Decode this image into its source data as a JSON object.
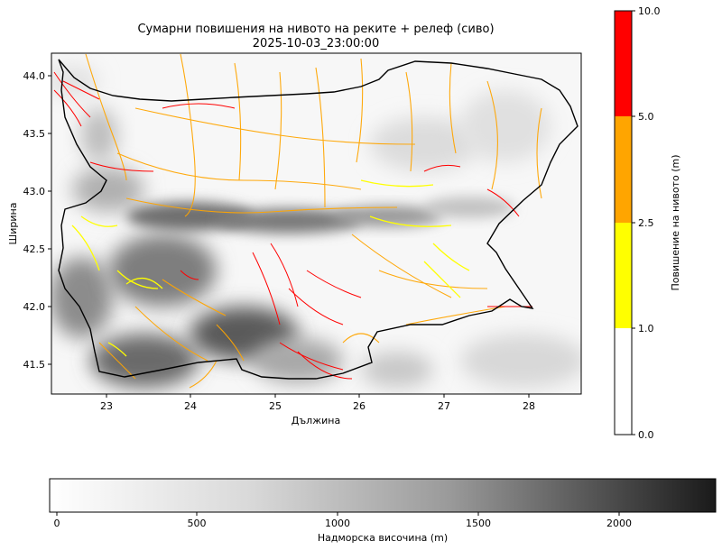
{
  "title": {
    "line1": "Сумарни повишения на нивото на реките + релеф (сиво)",
    "line2": "2025-10-03_23:00:00"
  },
  "axes": {
    "xlabel": "Дължина",
    "ylabel": "Ширина",
    "xticks": [
      "23",
      "24",
      "25",
      "26",
      "27",
      "28"
    ],
    "yticks": [
      "44.0",
      "43.5",
      "43.0",
      "42.5",
      "42.0",
      "41.5"
    ],
    "xlim": [
      22.35,
      28.62
    ],
    "ylim": [
      41.23,
      44.22
    ]
  },
  "river_colorbar": {
    "label": "Повишение на нивото (m)",
    "ticks": [
      "10.0",
      "5.0",
      "2.5",
      "1.0",
      "0.0"
    ],
    "bins": [
      {
        "from": 0.0,
        "to": 1.0,
        "color": "#ffffff"
      },
      {
        "from": 1.0,
        "to": 2.5,
        "color": "#ffff00"
      },
      {
        "from": 2.5,
        "to": 5.0,
        "color": "#ffa500"
      },
      {
        "from": 5.0,
        "to": 10.0,
        "color": "#ff0000"
      }
    ]
  },
  "elevation_colorbar": {
    "label": "Надморска височина (m)",
    "ticks": [
      "0",
      "500",
      "1000",
      "1500",
      "2000"
    ],
    "range": [
      0,
      2360
    ],
    "colors": [
      "#ffffff",
      "#1a1a1a"
    ]
  }
}
